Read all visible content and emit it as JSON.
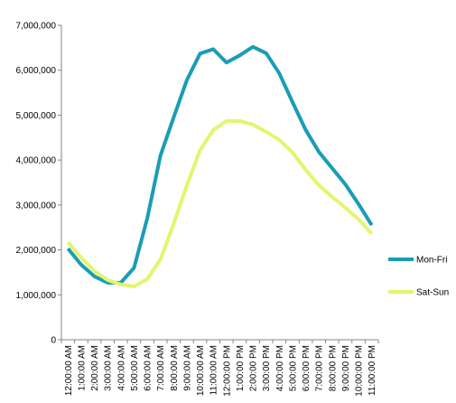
{
  "chart_data": {
    "type": "line",
    "categories": [
      "12:00:00 AM",
      "1:00:00 AM",
      "2:00:00 AM",
      "3:00:00 AM",
      "4:00:00 AM",
      "5:00:00 AM",
      "6:00:00 AM",
      "7:00:00 AM",
      "8:00:00 AM",
      "9:00:00 AM",
      "10:00:00 AM",
      "11:00:00 AM",
      "12:00:00 PM",
      "1:00:00 PM",
      "2:00:00 PM",
      "3:00:00 PM",
      "4:00:00 PM",
      "5:00:00 PM",
      "6:00:00 PM",
      "7:00:00 PM",
      "8:00:00 PM",
      "9:00:00 PM",
      "10:00:00 PM",
      "11:00:00 PM"
    ],
    "series": [
      {
        "name": "Mon-Fri",
        "color": "#1a9db5",
        "values": [
          2030000,
          1670000,
          1410000,
          1270000,
          1270000,
          1600000,
          2700000,
          4100000,
          4950000,
          5780000,
          6370000,
          6470000,
          6170000,
          6330000,
          6520000,
          6380000,
          5930000,
          5290000,
          4670000,
          4180000,
          3820000,
          3460000,
          3020000,
          2550000
        ]
      },
      {
        "name": "Sat-Sun",
        "color": "#e4f56e",
        "values": [
          2170000,
          1830000,
          1530000,
          1330000,
          1230000,
          1190000,
          1350000,
          1790000,
          2580000,
          3440000,
          4220000,
          4670000,
          4870000,
          4870000,
          4790000,
          4630000,
          4450000,
          4170000,
          3780000,
          3440000,
          3180000,
          2940000,
          2680000,
          2360000
        ]
      }
    ],
    "ylim": [
      0,
      7000000
    ],
    "yticks": [
      0,
      {
        "value": 1000000,
        "label": "1,000,000"
      },
      {
        "value": 2000000,
        "label": "2,000,000"
      },
      {
        "value": 3000000,
        "label": "3,000,000"
      },
      {
        "value": 4000000,
        "label": "4,000,000"
      },
      {
        "value": 5000000,
        "label": "5,000,000"
      },
      {
        "value": 6000000,
        "label": "6,000,000"
      },
      {
        "value": 7000000,
        "label": "7,000,000"
      }
    ],
    "grid": false,
    "legend": "right"
  }
}
